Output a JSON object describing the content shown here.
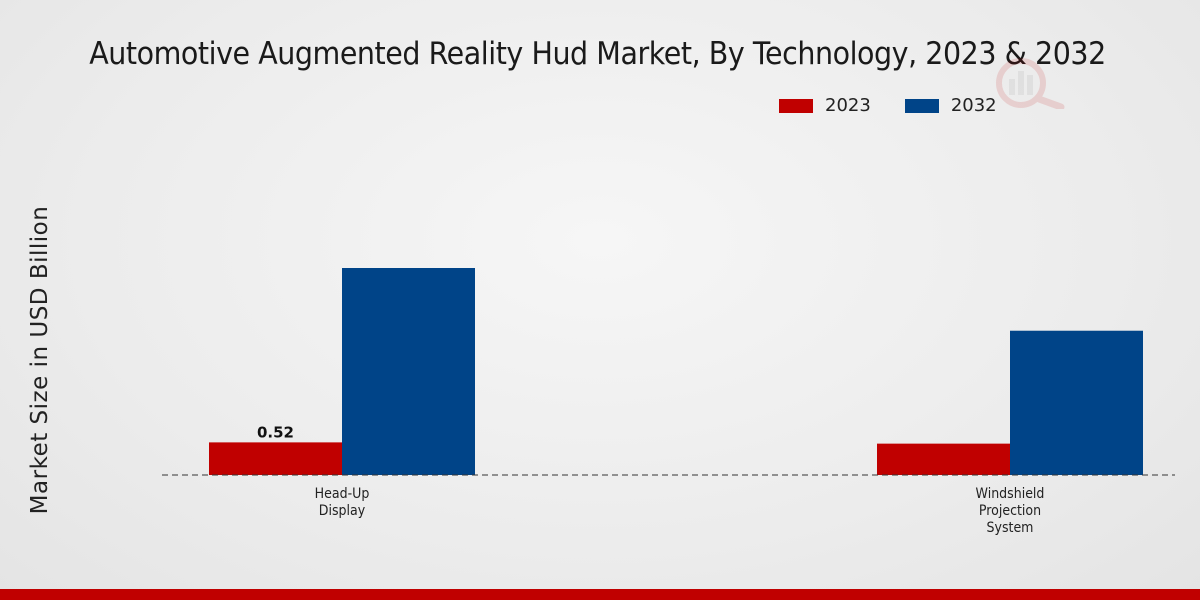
{
  "chart_data": {
    "type": "bar",
    "title": "Automotive Augmented Reality Hud Market, By Technology, 2023 & 2032",
    "xlabel": "",
    "ylabel": "Market Size in USD Billion",
    "categories": [
      "Head-Up\nDisplay",
      "Windshield\nProjection\nSystem"
    ],
    "series": [
      {
        "name": "2023",
        "color": "#c00000",
        "values": [
          0.52,
          0.5
        ]
      },
      {
        "name": "2032",
        "color": "#004488",
        "values": [
          3.3,
          2.3
        ]
      }
    ],
    "data_labels": [
      {
        "series": 0,
        "category": 0,
        "text": "0.52"
      }
    ],
    "ylim": [
      0,
      5.5
    ],
    "grid": false,
    "legend": "top-right"
  }
}
